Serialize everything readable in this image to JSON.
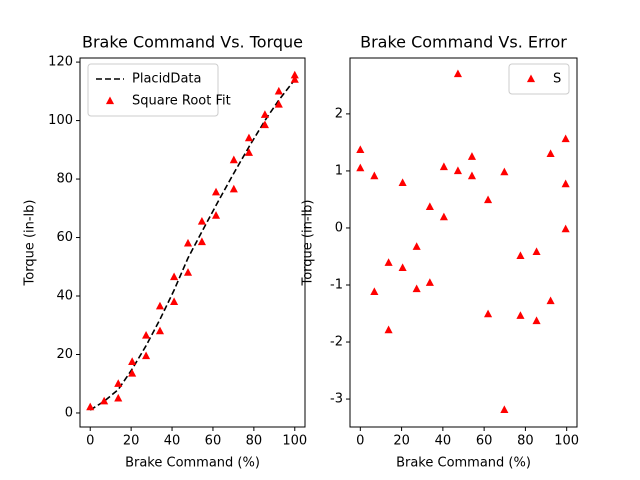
{
  "chart_data": [
    {
      "type": "line",
      "title": "Brake Command Vs. Torque",
      "xlabel": "Brake Command (%)",
      "ylabel": "Torque (in-lb)",
      "xlim": [
        -5,
        105
      ],
      "ylim": [
        -4.8,
        121.4
      ],
      "xticks": [
        0,
        20,
        40,
        60,
        80,
        100
      ],
      "yticks": [
        0,
        20,
        40,
        60,
        80,
        100,
        120
      ],
      "legend": "upper left",
      "series": [
        {
          "name": "PlacidData",
          "color": "#000000",
          "linestyle": "--",
          "x": [
            0,
            6.8,
            13.7,
            20.5,
            27.3,
            34.1,
            41,
            47.8,
            54.6,
            61.5,
            70.2,
            77.6,
            85.4,
            92.2,
            100
          ],
          "values": [
            1,
            4,
            8,
            15,
            23,
            32,
            42,
            53,
            62,
            71,
            82,
            91,
            100,
            107,
            114
          ]
        },
        {
          "name": "Square Root Fit",
          "color": "#ff0000",
          "marker": "^",
          "x": [
            0,
            6.8,
            13.7,
            13.7,
            20.5,
            20.5,
            27.3,
            27.3,
            34.1,
            34.1,
            41,
            41,
            47.8,
            47.8,
            54.6,
            54.6,
            61.5,
            61.5,
            70.2,
            70.2,
            77.6,
            77.6,
            85.4,
            85.4,
            92.2,
            92.2,
            100,
            100
          ],
          "values": [
            2,
            4,
            10,
            5,
            17.5,
            13.5,
            26.5,
            19.5,
            36.5,
            28,
            46.5,
            38,
            58,
            48,
            65.5,
            58.5,
            75.5,
            67.5,
            86.5,
            76.5,
            94,
            89,
            102,
            98.5,
            110,
            105.5,
            115.5,
            114
          ]
        }
      ]
    },
    {
      "type": "scatter",
      "title": "Brake Command Vs. Error",
      "xlabel": "Brake Command (%)",
      "ylabel": "Torque (in-lb)",
      "xlim": [
        -5,
        105
      ],
      "ylim": [
        -3.49,
        2.98
      ],
      "xticks": [
        0,
        20,
        40,
        60,
        80,
        100
      ],
      "yticks": [
        -3,
        -2,
        -1,
        0,
        1,
        2
      ],
      "legend": "upper right",
      "series": [
        {
          "name": "S",
          "color": "#ff0000",
          "marker": "^",
          "x": [
            0,
            0,
            6.8,
            6.8,
            13.7,
            13.7,
            20.5,
            20.5,
            27.3,
            27.3,
            33.7,
            33.7,
            40.5,
            40.5,
            47.3,
            47.3,
            54.1,
            54.1,
            61.9,
            61.9,
            69.8,
            69.8,
            77.6,
            77.6,
            85.4,
            85.4,
            92.2,
            92.2,
            99.5,
            99.5,
            99.5
          ],
          "values": [
            1.37,
            1.05,
            0.91,
            -1.12,
            -0.61,
            -1.79,
            0.79,
            -0.7,
            -0.33,
            -1.07,
            0.37,
            -0.96,
            1.07,
            0.19,
            2.7,
            1.0,
            1.25,
            0.91,
            0.49,
            -1.51,
            0.98,
            -3.19,
            -0.49,
            -1.54,
            -0.42,
            -1.63,
            1.3,
            -1.28,
            1.56,
            0.77,
            -0.02
          ]
        }
      ]
    }
  ]
}
